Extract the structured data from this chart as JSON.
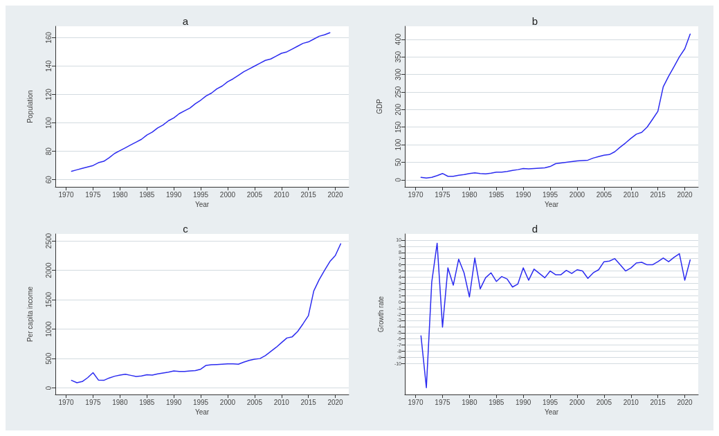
{
  "chart_data": [
    {
      "type": "line",
      "title": "a",
      "xlabel": "Year",
      "ylabel": "Population",
      "color": "#2b2bf0",
      "grid": "y",
      "xlim": [
        1968,
        2022.5
      ],
      "xticks": [
        1970,
        1975,
        1980,
        1985,
        1990,
        1995,
        2000,
        2005,
        2010,
        2015,
        2020
      ],
      "ylim": [
        55,
        168
      ],
      "yticks": [
        60,
        80,
        100,
        120,
        140,
        160
      ],
      "x": [
        1971,
        1972,
        1973,
        1974,
        1975,
        1976,
        1977,
        1978,
        1979,
        1980,
        1981,
        1982,
        1983,
        1984,
        1985,
        1986,
        1987,
        1988,
        1989,
        1990,
        1991,
        1992,
        1993,
        1994,
        1995,
        1996,
        1997,
        1998,
        1999,
        2000,
        2001,
        2002,
        2003,
        2004,
        2005,
        2006,
        2007,
        2008,
        2009,
        2010,
        2011,
        2012,
        2013,
        2014,
        2015,
        2016,
        2017,
        2018,
        2019
      ],
      "values": [
        66,
        67,
        68,
        69,
        70,
        72,
        73,
        75.5,
        78.5,
        80.5,
        82.5,
        84.5,
        86.5,
        88.5,
        91.5,
        93.5,
        96.5,
        98.5,
        101.5,
        103.5,
        106.5,
        108.5,
        110.5,
        113.5,
        116,
        119,
        121,
        124,
        126,
        129,
        131,
        133.5,
        136,
        138,
        140,
        142,
        144,
        145,
        147,
        149,
        150,
        152,
        154,
        156,
        157,
        159,
        161,
        162,
        163.5
      ]
    },
    {
      "type": "line",
      "title": "b",
      "xlabel": "Year",
      "ylabel": "GDP",
      "color": "#2b2bf0",
      "grid": "y",
      "xlim": [
        1968,
        2022.5
      ],
      "xticks": [
        1970,
        1975,
        1980,
        1985,
        1990,
        1995,
        2000,
        2005,
        2010,
        2015,
        2020
      ],
      "ylim": [
        -20,
        437
      ],
      "yticks": [
        0,
        50,
        100,
        150,
        200,
        250,
        300,
        350,
        400
      ],
      "x": [
        1971,
        1972,
        1973,
        1974,
        1975,
        1976,
        1977,
        1978,
        1979,
        1980,
        1981,
        1982,
        1983,
        1984,
        1985,
        1986,
        1987,
        1988,
        1989,
        1990,
        1991,
        1992,
        1993,
        1994,
        1995,
        1996,
        1997,
        1998,
        1999,
        2000,
        2001,
        2002,
        2003,
        2004,
        2005,
        2006,
        2007,
        2008,
        2009,
        2010,
        2011,
        2012,
        2013,
        2014,
        2015,
        2016,
        2017,
        2018,
        2019,
        2020,
        2021
      ],
      "values": [
        7,
        5,
        7,
        12,
        18,
        10,
        10,
        13,
        15,
        18,
        20,
        18,
        17,
        19,
        22,
        22,
        24,
        27,
        29,
        32,
        31,
        32,
        33,
        34,
        38,
        46,
        48,
        50,
        52,
        54,
        55,
        56,
        62,
        66,
        70,
        72,
        80,
        93,
        105,
        118,
        130,
        135,
        150,
        172,
        195,
        265,
        295,
        322,
        350,
        373,
        415
      ]
    },
    {
      "type": "line",
      "title": "c",
      "xlabel": "Year",
      "ylabel": "Per capita income",
      "color": "#2b2bf0",
      "grid": "y",
      "xlim": [
        1968,
        2022.5
      ],
      "xticks": [
        1970,
        1975,
        1980,
        1985,
        1990,
        1995,
        2000,
        2005,
        2010,
        2015,
        2020
      ],
      "ylim": [
        -110,
        2618
      ],
      "yticks": [
        0,
        500,
        1000,
        1500,
        2000,
        2500
      ],
      "x": [
        1971,
        1972,
        1973,
        1974,
        1975,
        1976,
        1977,
        1978,
        1979,
        1980,
        1981,
        1982,
        1983,
        1984,
        1985,
        1986,
        1987,
        1988,
        1989,
        1990,
        1991,
        1992,
        1993,
        1994,
        1995,
        1996,
        1997,
        1998,
        1999,
        2000,
        2001,
        2002,
        2003,
        2004,
        2005,
        2006,
        2007,
        2008,
        2009,
        2010,
        2011,
        2012,
        2013,
        2014,
        2015,
        2016,
        2017,
        2018,
        2019,
        2020,
        2021
      ],
      "values": [
        130,
        90,
        110,
        175,
        260,
        135,
        130,
        170,
        200,
        220,
        235,
        215,
        195,
        205,
        225,
        220,
        240,
        255,
        270,
        290,
        280,
        280,
        290,
        295,
        320,
        385,
        395,
        400,
        405,
        410,
        410,
        405,
        440,
        470,
        490,
        500,
        550,
        620,
        690,
        770,
        850,
        870,
        960,
        1090,
        1230,
        1650,
        1840,
        2000,
        2150,
        2250,
        2450
      ]
    },
    {
      "type": "line",
      "title": "d",
      "xlabel": "Year",
      "ylabel": "Growth rate",
      "color": "#2b2bf0",
      "grid": "y",
      "xlim": [
        1968,
        2022.5
      ],
      "xticks": [
        1970,
        1975,
        1980,
        1985,
        1990,
        1995,
        2000,
        2005,
        2010,
        2015,
        2020
      ],
      "ylim": [
        -15,
        11
      ],
      "yticks": [
        -10,
        -9,
        -8,
        -7,
        -6,
        -5,
        -4,
        -3,
        -2,
        -1,
        0,
        1,
        2,
        3,
        4,
        5,
        6,
        7,
        8,
        9,
        10
      ],
      "x": [
        1971,
        1972,
        1973,
        1974,
        1975,
        1976,
        1977,
        1978,
        1979,
        1980,
        1981,
        1982,
        1983,
        1984,
        1985,
        1986,
        1987,
        1988,
        1989,
        1990,
        1991,
        1992,
        1993,
        1994,
        1995,
        1996,
        1997,
        1998,
        1999,
        2000,
        2001,
        2002,
        2003,
        2004,
        2005,
        2006,
        2007,
        2008,
        2009,
        2010,
        2011,
        2012,
        2013,
        2014,
        2015,
        2016,
        2017,
        2018,
        2019,
        2020,
        2021
      ],
      "values": [
        -5.5,
        -13.9,
        3.2,
        9.5,
        -4.1,
        5.5,
        2.7,
        6.9,
        4.7,
        0.8,
        7.1,
        2.1,
        3.9,
        4.7,
        3.3,
        4.1,
        3.7,
        2.4,
        2.9,
        5.5,
        3.5,
        5.3,
        4.6,
        3.9,
        5.0,
        4.4,
        4.4,
        5.1,
        4.6,
        5.2,
        5.0,
        3.8,
        4.7,
        5.2,
        6.5,
        6.6,
        7.0,
        6.0,
        5.0,
        5.5,
        6.3,
        6.4,
        6.0,
        6.0,
        6.5,
        7.1,
        6.5,
        7.2,
        7.8,
        3.5,
        6.8
      ]
    }
  ]
}
